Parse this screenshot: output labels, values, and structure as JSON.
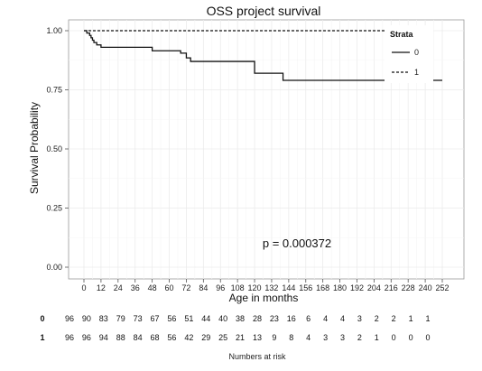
{
  "chart_data": {
    "type": "line",
    "title": "OSS project survival",
    "xlabel": "Age in months",
    "ylabel": "Survival Probability",
    "xlim": [
      0,
      252
    ],
    "ylim": [
      0,
      1
    ],
    "x_ticks": [
      0,
      12,
      24,
      36,
      48,
      60,
      72,
      84,
      96,
      108,
      120,
      132,
      144,
      156,
      168,
      180,
      192,
      204,
      216,
      228,
      240,
      252
    ],
    "y_ticks": [
      "0.00",
      "0.25",
      "0.50",
      "0.75",
      "1.00"
    ],
    "grid": true,
    "legend": {
      "title": "Strata",
      "position": "top-right"
    },
    "annotation": "p = 0.000372",
    "series": [
      {
        "name": "0",
        "line_style": "solid",
        "points": [
          [
            0,
            1.0
          ],
          [
            2,
            0.99
          ],
          [
            4,
            0.98
          ],
          [
            5,
            0.97
          ],
          [
            6,
            0.96
          ],
          [
            7,
            0.95
          ],
          [
            9,
            0.94
          ],
          [
            12,
            0.93
          ],
          [
            48,
            0.915
          ],
          [
            68,
            0.905
          ],
          [
            72,
            0.885
          ],
          [
            75,
            0.87
          ],
          [
            120,
            0.82
          ],
          [
            140,
            0.79
          ],
          [
            252,
            0.79
          ]
        ]
      },
      {
        "name": "1",
        "line_style": "dashed",
        "points": [
          [
            0,
            1.0
          ],
          [
            216,
            1.0
          ]
        ]
      }
    ],
    "risk_table": {
      "title": "Numbers at risk",
      "rows": [
        {
          "label": "0",
          "values": [
            96,
            90,
            83,
            79,
            73,
            67,
            56,
            51,
            44,
            40,
            38,
            28,
            23,
            16,
            6,
            4,
            4,
            3,
            2,
            2,
            1,
            1
          ]
        },
        {
          "label": "1",
          "values": [
            96,
            96,
            94,
            88,
            84,
            68,
            56,
            42,
            29,
            25,
            21,
            13,
            9,
            8,
            4,
            3,
            3,
            2,
            1,
            0,
            0,
            0
          ]
        }
      ]
    }
  }
}
